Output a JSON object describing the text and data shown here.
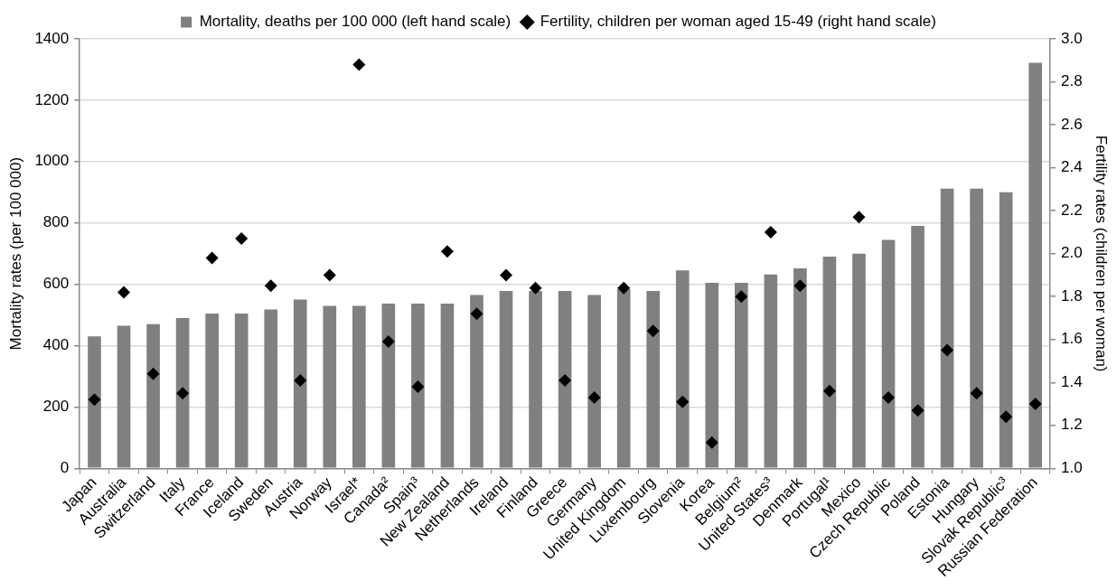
{
  "chart_data": {
    "type": "bar",
    "ylabel": "Mortality rates (per 100 000)",
    "y2label": "Fertility rates (children per woman)",
    "categories": [
      "Japan",
      "Australia",
      "Switzerland",
      "Italy",
      "France",
      "Iceland",
      "Sweden",
      "Austria",
      "Norway",
      "Israel*",
      "Canada²",
      "Spain³",
      "New Zealand",
      "Netherlands",
      "Ireland",
      "Finland",
      "Greece",
      "Germany",
      "United Kingdom",
      "Luxembourg",
      "Slovenia",
      "Korea",
      "Belgium²",
      "United States³",
      "Denmark",
      "Portugal¹",
      "Mexico",
      "Czech Republic",
      "Poland",
      "Estonia",
      "Hungary",
      "Slovak Republic³",
      "Russian Federation"
    ],
    "series": [
      {
        "name": "Mortality, deaths per 100 000 (left hand scale)",
        "color": "#808080",
        "values": [
          430,
          465,
          470,
          490,
          505,
          505,
          518,
          550,
          530,
          530,
          537,
          537,
          537,
          565,
          578,
          578,
          578,
          565,
          585,
          578,
          645,
          605,
          605,
          632,
          652,
          690,
          700,
          745,
          790,
          912,
          912,
          900,
          1322
        ]
      },
      {
        "name": "Fertility, children per woman aged 15-49 (right hand scale)",
        "type": "scatter",
        "axis": "y2",
        "color": "#000000",
        "values": [
          1.32,
          1.82,
          1.44,
          1.35,
          1.98,
          2.07,
          1.85,
          1.41,
          1.9,
          2.88,
          1.59,
          1.38,
          2.01,
          1.72,
          1.9,
          1.84,
          1.41,
          1.33,
          1.84,
          1.64,
          1.31,
          1.12,
          1.8,
          2.1,
          1.85,
          1.36,
          2.17,
          1.33,
          1.27,
          1.55,
          1.35,
          1.24,
          1.3
        ]
      }
    ],
    "ylim": [
      0,
      1400
    ],
    "yticks": [
      0,
      200,
      400,
      600,
      800,
      1000,
      1200,
      1400
    ],
    "y2lim": [
      1,
      3
    ],
    "y2ticks": [
      {
        "value": 1,
        "label": "1.0"
      },
      {
        "value": 1.2,
        "label": "1.2"
      },
      {
        "value": 1.4,
        "label": "1.4"
      },
      {
        "value": 1.6,
        "label": "1.6"
      },
      {
        "value": 1.8,
        "label": "1.8"
      },
      {
        "value": 2,
        "label": "2.0"
      },
      {
        "value": 2.2,
        "label": "2.2"
      },
      {
        "value": 2.4,
        "label": "2.4"
      },
      {
        "value": 2.6,
        "label": "2.6"
      },
      {
        "value": 2.8,
        "label": "2.8"
      },
      {
        "value": 3,
        "label": "3.0"
      }
    ],
    "grid": "y",
    "legend": "top",
    "marker": "diamond"
  }
}
